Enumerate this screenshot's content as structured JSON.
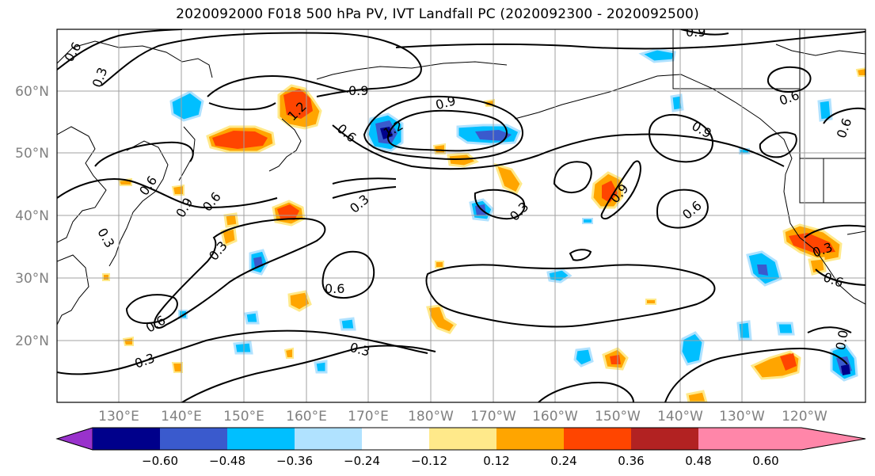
{
  "title": "2020092000 F018 500 hPa PV, IVT Landfall PC (2020092300 - 2020092500)",
  "map": {
    "lat_labels": [
      "60°N",
      "50°N",
      "40°N",
      "30°N",
      "20°N"
    ],
    "lon_labels": [
      "130°E",
      "140°E",
      "150°E",
      "160°E",
      "170°E",
      "180°W",
      "170°W",
      "160°W",
      "150°W",
      "140°W",
      "130°W",
      "120°W"
    ],
    "contour_labels": [
      {
        "text": "0.6"
      },
      {
        "text": "0.3"
      },
      {
        "text": "1.2"
      },
      {
        "text": "0.9"
      },
      {
        "text": "0.6"
      },
      {
        "text": "1.2"
      },
      {
        "text": "0.9"
      },
      {
        "text": "0.9"
      },
      {
        "text": "0.6"
      },
      {
        "text": "0.6"
      },
      {
        "text": "0.9"
      },
      {
        "text": "0.6"
      },
      {
        "text": "0.9"
      },
      {
        "text": "0.3"
      },
      {
        "text": "0.3"
      },
      {
        "text": "0.9"
      },
      {
        "text": "0.6"
      },
      {
        "text": "0.6"
      },
      {
        "text": "0.3"
      },
      {
        "text": "0.6"
      },
      {
        "text": "0.6"
      },
      {
        "text": "0.3"
      },
      {
        "text": "0.3"
      },
      {
        "text": "0.3"
      },
      {
        "text": "0.6"
      },
      {
        "text": "0.3"
      },
      {
        "text": "0.0"
      }
    ]
  },
  "colorbar": {
    "ticks": [
      "−0.60",
      "−0.48",
      "−0.36",
      "−0.24",
      "−0.12",
      "0.12",
      "0.24",
      "0.36",
      "0.48",
      "0.60"
    ],
    "colors": [
      "#9932cc",
      "#00008b",
      "#3a5acd",
      "#00bfff",
      "#b0e2ff",
      "#ffffff",
      "#ffe98a",
      "#ffa500",
      "#ff4500",
      "#b22222",
      "#ff86a9"
    ]
  }
}
